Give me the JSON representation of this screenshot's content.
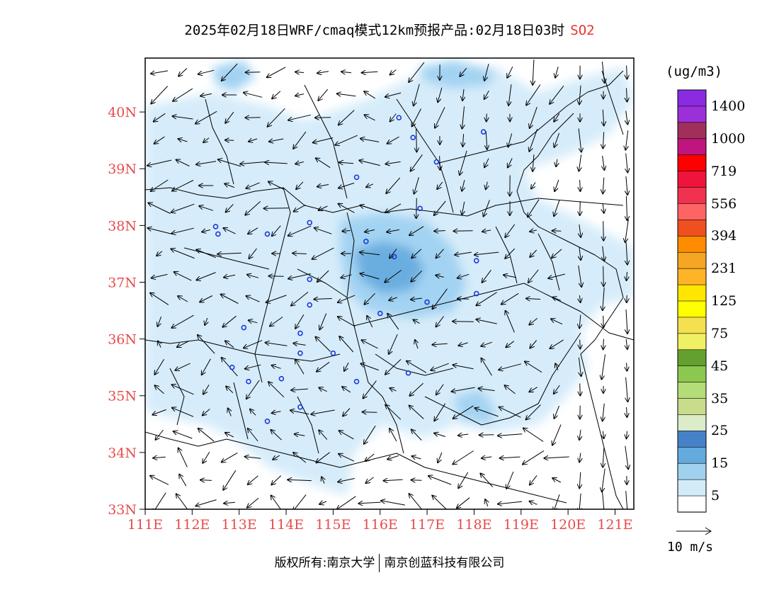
{
  "title": {
    "text": "2025年02月18日WRF/cmaq模式12km预报产品:02月18日03时",
    "pollutant": "SO2"
  },
  "colors": {
    "tick_label": "#e84a4a",
    "pollutant": "#e8342c"
  },
  "legend": {
    "unit": "(ug/m3)",
    "labels": [
      "1400",
      "1000",
      "719",
      "556",
      "394",
      "231",
      "125",
      "75",
      "45",
      "35",
      "25",
      "15",
      "5"
    ],
    "colors_top_to_bottom": [
      "#8a2be2",
      "#9b30d9",
      "#a0305a",
      "#c0157e",
      "#ff0000",
      "#f0143c",
      "#f03250",
      "#ff6464",
      "#f05020",
      "#ff8c00",
      "#f5a623",
      "#ffb428",
      "#ffe600",
      "#ffff00",
      "#f5e050",
      "#f0f064",
      "#64a030",
      "#8cc850",
      "#b4dc78",
      "#c8dc8c",
      "#dcebc8",
      "#4682c8",
      "#64aadc",
      "#a0d2f0",
      "#d2ebf8",
      "#ffffff"
    ]
  },
  "map": {
    "lon_labels": [
      "111E",
      "112E",
      "113E",
      "114E",
      "115E",
      "116E",
      "117E",
      "118E",
      "119E",
      "120E",
      "121E"
    ],
    "lat_labels": [
      "40N",
      "39N",
      "38N",
      "37N",
      "36N",
      "35N",
      "34N",
      "33N"
    ],
    "lon_range": [
      111,
      121.4
    ],
    "lat_range": [
      33,
      40.95
    ],
    "city_markers": [
      [
        116.4,
        39.9
      ],
      [
        116.7,
        39.55
      ],
      [
        117.2,
        39.12
      ],
      [
        118.2,
        39.65
      ],
      [
        114.5,
        38.05
      ],
      [
        115.5,
        38.85
      ],
      [
        116.85,
        38.3
      ],
      [
        112.55,
        37.85
      ],
      [
        113.6,
        37.85
      ],
      [
        112.5,
        37.98
      ],
      [
        115.7,
        37.72
      ],
      [
        116.3,
        37.45
      ],
      [
        118.05,
        37.38
      ],
      [
        114.5,
        37.05
      ],
      [
        114.5,
        36.6
      ],
      [
        116.0,
        36.45
      ],
      [
        117.0,
        36.65
      ],
      [
        118.05,
        36.8
      ],
      [
        113.1,
        36.2
      ],
      [
        114.3,
        36.1
      ],
      [
        112.85,
        35.5
      ],
      [
        114.3,
        35.75
      ],
      [
        115.0,
        35.75
      ],
      [
        113.2,
        35.25
      ],
      [
        113.9,
        35.3
      ],
      [
        115.5,
        35.25
      ],
      [
        116.6,
        35.4
      ],
      [
        113.6,
        34.55
      ],
      [
        114.3,
        34.8
      ]
    ]
  },
  "wind_reference": {
    "label": "10 m/s"
  },
  "footer": {
    "left": "版权所有:南京大学",
    "right": "南京创蓝科技有限公司"
  }
}
